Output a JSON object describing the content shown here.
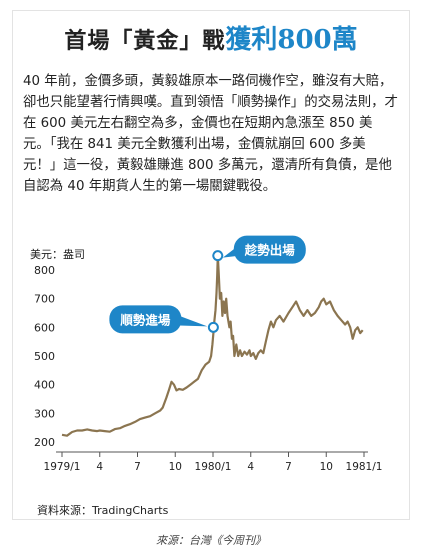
{
  "title": {
    "part1": "首場「黃金」戰",
    "part2": "獲利800萬"
  },
  "body_text": "40 年前，金價多頭，黃毅雄原本一路伺機作空，雖沒有大賠，卻也只能望著行情興嘆。直到領悟「順勢操作」的交易法則，才在 600 美元左右翻空為多，金價也在短期內急漲至 850 美元。「我在 841 美元全數獲利出場，金價就崩回 600 多美元！」這一役，黃毅雄賺進 800 多萬元，還清所有負債，是他自認為 40 年期貨人生的第一場關鍵戰役。",
  "source_label": "資料來源：TradingCharts",
  "caption": "來源：台灣《今周刊》",
  "colors": {
    "line": "#8b7550",
    "accent": "#1e86c8",
    "title_blue": "#1e86c8"
  },
  "chart_data": {
    "type": "line",
    "title": "",
    "ylabel": "美元：盎司",
    "xlabel": "",
    "ylim": [
      200,
      800
    ],
    "yticks": [
      200,
      300,
      400,
      500,
      600,
      700,
      800
    ],
    "grid": false,
    "x_ticks": [
      {
        "label": "1979/1",
        "t": 0
      },
      {
        "label": "4",
        "t": 3
      },
      {
        "label": "7",
        "t": 6
      },
      {
        "label": "10",
        "t": 9
      },
      {
        "label": "1980/1",
        "t": 12
      },
      {
        "label": "4",
        "t": 15
      },
      {
        "label": "7",
        "t": 18
      },
      {
        "label": "10",
        "t": 21
      },
      {
        "label": "1981/1",
        "t": 24
      }
    ],
    "series": [
      {
        "name": "",
        "points": [
          [
            0,
            225
          ],
          [
            0.4,
            222
          ],
          [
            0.8,
            235
          ],
          [
            1.2,
            240
          ],
          [
            1.6,
            240
          ],
          [
            2.0,
            244
          ],
          [
            2.4,
            240
          ],
          [
            2.8,
            238
          ],
          [
            3.0,
            240
          ],
          [
            3.4,
            238
          ],
          [
            3.8,
            236
          ],
          [
            4.2,
            245
          ],
          [
            4.6,
            248
          ],
          [
            5.0,
            256
          ],
          [
            5.4,
            262
          ],
          [
            5.8,
            270
          ],
          [
            6.2,
            280
          ],
          [
            6.6,
            285
          ],
          [
            7.0,
            290
          ],
          [
            7.4,
            300
          ],
          [
            7.8,
            310
          ],
          [
            8.0,
            320
          ],
          [
            8.3,
            355
          ],
          [
            8.5,
            382
          ],
          [
            8.7,
            410
          ],
          [
            8.9,
            400
          ],
          [
            9.1,
            380
          ],
          [
            9.3,
            385
          ],
          [
            9.6,
            382
          ],
          [
            9.9,
            390
          ],
          [
            10.2,
            400
          ],
          [
            10.5,
            410
          ],
          [
            10.8,
            420
          ],
          [
            11.1,
            450
          ],
          [
            11.4,
            470
          ],
          [
            11.7,
            480
          ],
          [
            11.85,
            500
          ],
          [
            11.95,
            540
          ],
          [
            12.03,
            580
          ],
          [
            12.1,
            620
          ],
          [
            12.2,
            660
          ],
          [
            12.28,
            720
          ],
          [
            12.33,
            780
          ],
          [
            12.38,
            850
          ],
          [
            12.45,
            790
          ],
          [
            12.55,
            700
          ],
          [
            12.65,
            720
          ],
          [
            12.75,
            640
          ],
          [
            12.85,
            690
          ],
          [
            12.95,
            650
          ],
          [
            13.05,
            700
          ],
          [
            13.15,
            640
          ],
          [
            13.3,
            600
          ],
          [
            13.4,
            620
          ],
          [
            13.5,
            560
          ],
          [
            13.6,
            570
          ],
          [
            13.7,
            500
          ],
          [
            13.85,
            540
          ],
          [
            14.0,
            500
          ],
          [
            14.15,
            520
          ],
          [
            14.3,
            500
          ],
          [
            14.5,
            515
          ],
          [
            14.7,
            505
          ],
          [
            14.9,
            520
          ],
          [
            15.0,
            500
          ],
          [
            15.2,
            510
          ],
          [
            15.4,
            490
          ],
          [
            15.6,
            510
          ],
          [
            15.8,
            520
          ],
          [
            16.0,
            510
          ],
          [
            16.2,
            550
          ],
          [
            16.4,
            590
          ],
          [
            16.6,
            620
          ],
          [
            16.8,
            600
          ],
          [
            17.0,
            625
          ],
          [
            17.3,
            640
          ],
          [
            17.6,
            620
          ],
          [
            18.0,
            650
          ],
          [
            18.3,
            670
          ],
          [
            18.6,
            690
          ],
          [
            18.9,
            660
          ],
          [
            19.2,
            640
          ],
          [
            19.5,
            660
          ],
          [
            19.8,
            640
          ],
          [
            20.1,
            650
          ],
          [
            20.4,
            670
          ],
          [
            20.6,
            690
          ],
          [
            20.8,
            700
          ],
          [
            21.0,
            680
          ],
          [
            21.3,
            690
          ],
          [
            21.6,
            660
          ],
          [
            21.9,
            640
          ],
          [
            22.2,
            625
          ],
          [
            22.5,
            610
          ],
          [
            22.7,
            620
          ],
          [
            22.9,
            600
          ],
          [
            23.1,
            560
          ],
          [
            23.3,
            590
          ],
          [
            23.5,
            600
          ],
          [
            23.7,
            580
          ],
          [
            23.9,
            590
          ]
        ]
      }
    ],
    "annotations": [
      {
        "label": "順勢進場",
        "t": 12.03,
        "value": 600
      },
      {
        "label": "趁勢出場",
        "t": 12.38,
        "value": 850
      }
    ]
  }
}
